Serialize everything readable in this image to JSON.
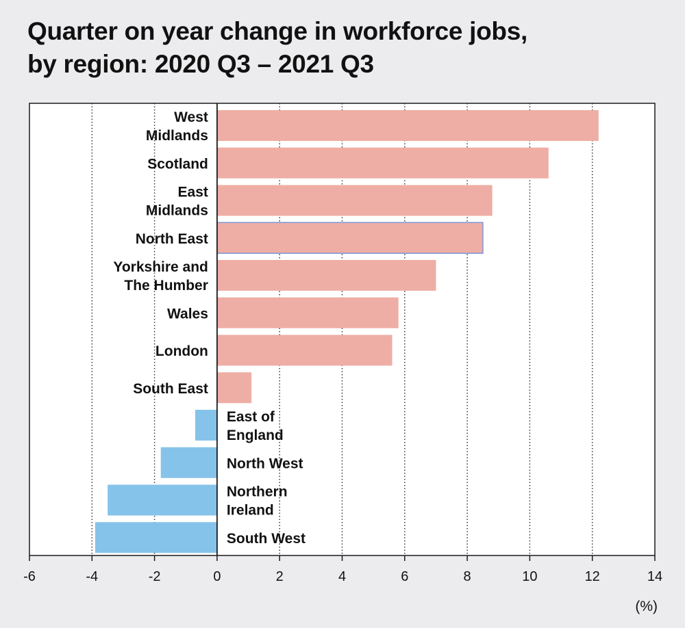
{
  "chart_data": {
    "type": "bar",
    "orientation": "horizontal",
    "title_line1": "Quarter on year change in workforce jobs,",
    "title_line2": "by region: 2020 Q3 – 2021 Q3",
    "xlabel": "(%)",
    "xlim": [
      -6,
      14
    ],
    "xticks": [
      -6,
      -4,
      -2,
      0,
      2,
      4,
      6,
      8,
      10,
      12,
      14
    ],
    "grid": "vertical dotted",
    "positive_color": "#eeaea5",
    "negative_color": "#86c3ea",
    "highlight_color": "#7b96d6",
    "categories": [
      {
        "name": "West Midlands",
        "lines": [
          "West",
          "Midlands"
        ],
        "value": 12.2
      },
      {
        "name": "Scotland",
        "lines": [
          "Scotland"
        ],
        "value": 10.6
      },
      {
        "name": "East Midlands",
        "lines": [
          "East",
          "Midlands"
        ],
        "value": 8.8
      },
      {
        "name": "North East",
        "lines": [
          "North East"
        ],
        "value": 8.5,
        "highlight": true
      },
      {
        "name": "Yorkshire and The Humber",
        "lines": [
          "Yorkshire and",
          "The Humber"
        ],
        "value": 7.0
      },
      {
        "name": "Wales",
        "lines": [
          "Wales"
        ],
        "value": 5.8
      },
      {
        "name": "London",
        "lines": [
          "London"
        ],
        "value": 5.6
      },
      {
        "name": "South East",
        "lines": [
          "South East"
        ],
        "value": 1.1
      },
      {
        "name": "East of England",
        "lines": [
          "East of",
          "England"
        ],
        "value": -0.7
      },
      {
        "name": "North West",
        "lines": [
          "North West"
        ],
        "value": -1.8
      },
      {
        "name": "Northern Ireland",
        "lines": [
          "Northern",
          "Ireland"
        ],
        "value": -3.5
      },
      {
        "name": "South West",
        "lines": [
          "South West"
        ],
        "value": -3.9
      }
    ]
  }
}
